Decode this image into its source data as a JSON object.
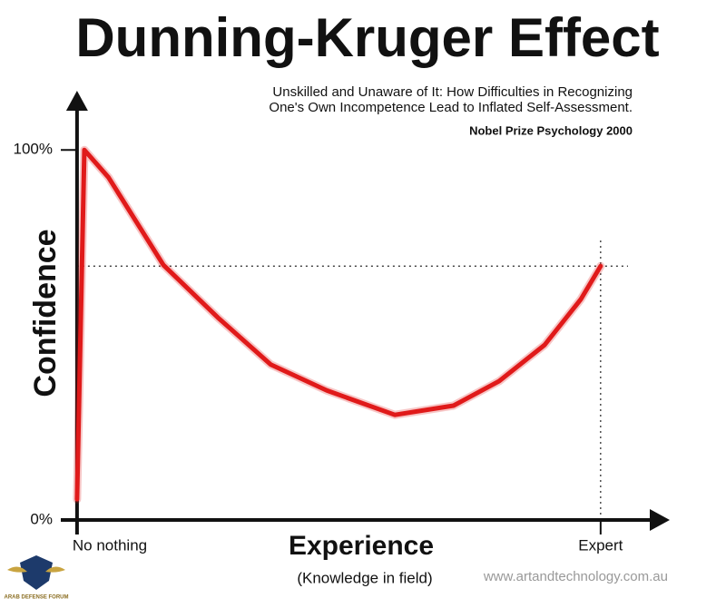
{
  "chart_data": {
    "type": "line",
    "title": "Dunning-Kruger Effect",
    "subtitle": [
      "Unskilled and Unaware of It: How Difficulties in Recognizing",
      "One's Own Incompetence Lead to Inflated Self-Assessment."
    ],
    "note": "Nobel Prize Psychology  2000",
    "ylabel": "Confidence",
    "xlabel": "Experience",
    "xlabel_sub": "(Knowledge in field)",
    "credit": "www.artandtechnology.com.au",
    "logo": "ARAB DEFENSE FORUM",
    "x": [
      0,
      1.4,
      6,
      16.5,
      26.9,
      37,
      47.7,
      60.7,
      71.9,
      80.6,
      89.3,
      96.2,
      100
    ],
    "series": [
      {
        "name": "Confidence",
        "color": "#e01a1a",
        "values": [
          5.6,
          100,
          92.6,
          68.9,
          54.7,
          42,
          35,
          28.4,
          30.9,
          37.5,
          47.3,
          59.6,
          68.6
        ]
      }
    ],
    "hline": 68.6,
    "vline": 100,
    "xlim": [
      -3.1,
      113.2
    ],
    "ylim": [
      0,
      116
    ],
    "xticks": [
      {
        "value": 0,
        "label": "No nothing"
      },
      {
        "value": 100,
        "label": "Expert"
      }
    ],
    "yticks": [
      {
        "value": 0,
        "label": "0%"
      },
      {
        "value": 100,
        "label": "100%"
      }
    ]
  }
}
